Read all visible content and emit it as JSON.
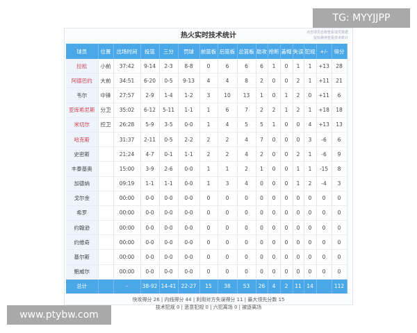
{
  "title": "热火实时技术统计",
  "hint_lines": [
    "点击球员名称查看球员数据",
    "鼠标悬停查看技术统计"
  ],
  "columns": [
    "球员",
    "位置",
    "出场时间",
    "投篮",
    "三分",
    "罚球",
    "前篮板",
    "后篮板",
    "总篮板",
    "助攻",
    "抢断",
    "盖帽",
    "失误",
    "犯规",
    "+/-",
    "得分"
  ],
  "accent_color": "#4aa8e8",
  "starter_name_color": "#d43b4b",
  "players": [
    {
      "highlight": true,
      "cells": [
        "拉松",
        "小前",
        "37:42",
        "9-14",
        "2-3",
        "8-8",
        "0",
        "6",
        "6",
        "6",
        "1",
        "0",
        "1",
        "1",
        "+13",
        "28"
      ]
    },
    {
      "highlight": true,
      "cells": [
        "阿德巴约",
        "大前",
        "34:51",
        "6-20",
        "0-5",
        "9-13",
        "4",
        "4",
        "8",
        "2",
        "0",
        "0",
        "2",
        "1",
        "+11",
        "21"
      ]
    },
    {
      "highlight": false,
      "cells": [
        "韦尔",
        "中锋",
        "27:57",
        "2-9",
        "1-4",
        "1-2",
        "3",
        "10",
        "13",
        "1",
        "0",
        "1",
        "2",
        "0",
        "+11",
        "6"
      ]
    },
    {
      "highlight": true,
      "cells": [
        "亚库希尼斯",
        "分卫",
        "35:02",
        "6-12",
        "5-11",
        "1-1",
        "1",
        "6",
        "7",
        "2",
        "2",
        "1",
        "2",
        "1",
        "+18",
        "18"
      ]
    },
    {
      "highlight": true,
      "cells": [
        "米切尔",
        "控卫",
        "26:28",
        "5-9",
        "3-5",
        "0-0",
        "1",
        "4",
        "5",
        "5",
        "1",
        "0",
        "0",
        "4",
        "+13",
        "13"
      ]
    },
    {
      "highlight": true,
      "cells": [
        "哈克斯",
        "",
        "31:37",
        "2-11",
        "0-5",
        "2-2",
        "2",
        "2",
        "4",
        "7",
        "0",
        "0",
        "0",
        "3",
        "-6",
        "6"
      ]
    },
    {
      "highlight": false,
      "cells": [
        "史密斯",
        "",
        "21:24",
        "4-7",
        "0-1",
        "1-1",
        "2",
        "2",
        "4",
        "2",
        "0",
        "0",
        "2",
        "1",
        "-6",
        "9"
      ]
    },
    {
      "highlight": false,
      "cells": [
        "丰泰基奥",
        "",
        "15:00",
        "3-9",
        "2-6",
        "0-0",
        "1",
        "1",
        "2",
        "1",
        "0",
        "0",
        "1",
        "1",
        "-15",
        "8"
      ]
    },
    {
      "highlight": false,
      "cells": [
        "加德纳",
        "",
        "09:19",
        "1-1",
        "1-1",
        "0-0",
        "1",
        "3",
        "4",
        "0",
        "0",
        "0",
        "1",
        "2",
        "-4",
        "3"
      ]
    },
    {
      "highlight": false,
      "cells": [
        "戈尔金",
        "",
        "00:00",
        "0-0",
        "0-0",
        "0-0",
        "0",
        "0",
        "0",
        "0",
        "0",
        "0",
        "0",
        "0",
        "0",
        "0"
      ]
    },
    {
      "highlight": false,
      "cells": [
        "希罗",
        "",
        "00:00",
        "0-0",
        "0-0",
        "0-0",
        "0",
        "0",
        "0",
        "0",
        "0",
        "0",
        "0",
        "0",
        "0",
        "0"
      ]
    },
    {
      "highlight": false,
      "cells": [
        "约翰逊",
        "",
        "00:00",
        "0-0",
        "0-0",
        "0-0",
        "0",
        "0",
        "0",
        "0",
        "0",
        "0",
        "0",
        "0",
        "0",
        "0"
      ]
    },
    {
      "highlight": false,
      "cells": [
        "约维奇",
        "",
        "00:00",
        "0-0",
        "0-0",
        "0-0",
        "0",
        "0",
        "0",
        "0",
        "0",
        "0",
        "0",
        "0",
        "0",
        "0"
      ]
    },
    {
      "highlight": false,
      "cells": [
        "基尔斯",
        "",
        "00:00",
        "0-0",
        "0-0",
        "0-0",
        "0",
        "0",
        "0",
        "0",
        "0",
        "0",
        "0",
        "0",
        "0",
        "0"
      ]
    },
    {
      "highlight": false,
      "cells": [
        "鲍威尔",
        "",
        "00:00",
        "0-0",
        "0-0",
        "0-0",
        "0",
        "0",
        "0",
        "0",
        "0",
        "0",
        "0",
        "0",
        "0",
        "0"
      ]
    }
  ],
  "totals": [
    "总计",
    "",
    "-",
    "38-92",
    "14-41",
    "22-27",
    "15",
    "38",
    "53",
    "26",
    "4",
    "2",
    "11",
    "14",
    "",
    "112"
  ],
  "footer": {
    "line1": "快攻得分 26 | 内线得分 44 | 利用对方失误得分 11 | 最大领先分数 15",
    "line2": "技术犯规 0 | 恶意犯规 0 | 六犯离场 0 | 被逐离场"
  },
  "watermarks": {
    "top": "TG: MYYJJPP",
    "bottom": "www.ptybw.com"
  }
}
